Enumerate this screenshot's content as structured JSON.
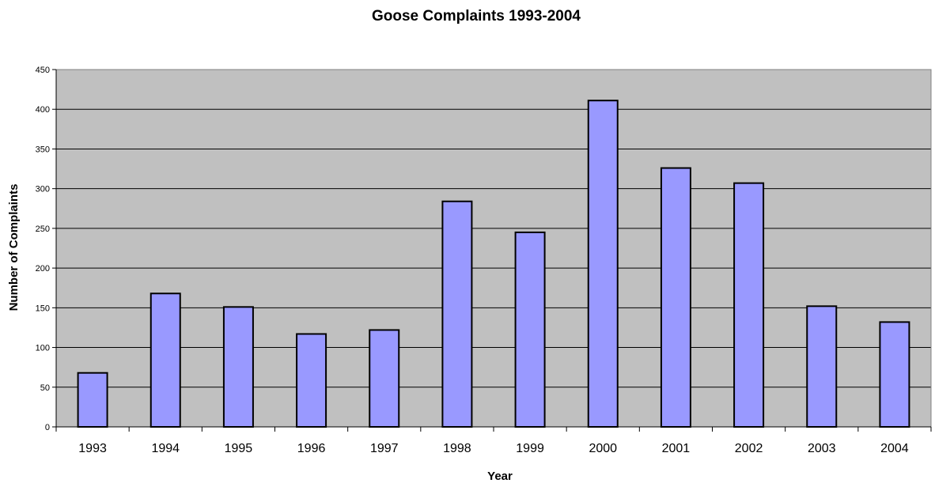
{
  "chart_data": {
    "type": "bar",
    "title": "Goose Complaints 1993-2004",
    "xlabel": "Year",
    "ylabel": "Number of Complaints",
    "categories": [
      "1993",
      "1994",
      "1995",
      "1996",
      "1997",
      "1998",
      "1999",
      "2000",
      "2001",
      "2002",
      "2003",
      "2004"
    ],
    "values": [
      68,
      168,
      151,
      117,
      122,
      284,
      245,
      411,
      326,
      307,
      152,
      132
    ],
    "ylim": [
      0,
      450
    ],
    "yticks": [
      0,
      50,
      100,
      150,
      200,
      250,
      300,
      350,
      400,
      450
    ],
    "grid": true,
    "legend": "none",
    "colors": {
      "bar_fill": "#9999ff",
      "bar_stroke": "#000000",
      "plot_background": "#c0c0c0",
      "gridline": "#000000"
    }
  }
}
